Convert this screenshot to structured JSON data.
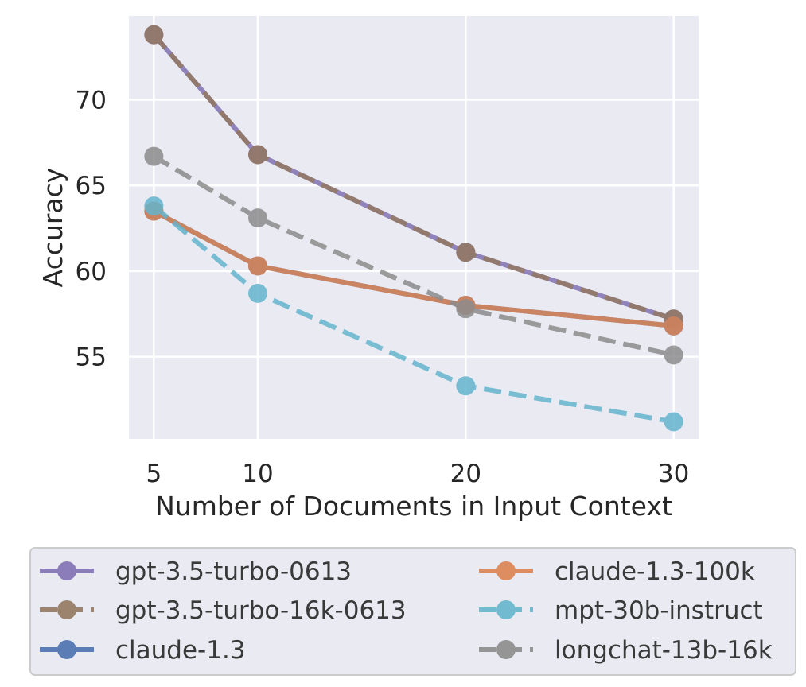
{
  "chart_data": {
    "type": "line",
    "xlabel": "Number of Documents in Input Context",
    "ylabel": "Accuracy",
    "x": [
      5,
      10,
      20,
      30
    ],
    "xticks": [
      5,
      10,
      20,
      30
    ],
    "yticks": [
      55,
      60,
      65,
      70
    ],
    "xlim": [
      3.8,
      31.2
    ],
    "ylim": [
      50.2,
      74.9
    ],
    "grid": true,
    "legend_position": "bottom",
    "series": [
      {
        "name": "gpt-3.5-turbo-0613",
        "values": [
          73.8,
          66.8,
          61.1,
          57.2
        ],
        "color": "#8172b3",
        "dash": "solid"
      },
      {
        "name": "gpt-3.5-turbo-16k-0613",
        "values": [
          73.8,
          66.8,
          61.1,
          57.2
        ],
        "color": "#937860",
        "dash": "dashed"
      },
      {
        "name": "claude-1.3",
        "values": [
          63.5,
          60.3,
          58.0,
          56.8
        ],
        "color": "#4c72b0",
        "dash": "solid"
      },
      {
        "name": "claude-1.3-100k",
        "values": [
          63.5,
          60.3,
          58.0,
          56.8
        ],
        "color": "#dd8452",
        "dash": "solid"
      },
      {
        "name": "mpt-30b-instruct",
        "values": [
          63.8,
          58.7,
          53.3,
          51.2
        ],
        "color": "#64b5cd",
        "dash": "dashed"
      },
      {
        "name": "longchat-13b-16k",
        "values": [
          66.7,
          63.1,
          57.8,
          55.1
        ],
        "color": "#8c8c8c",
        "dash": "dashed"
      }
    ]
  }
}
